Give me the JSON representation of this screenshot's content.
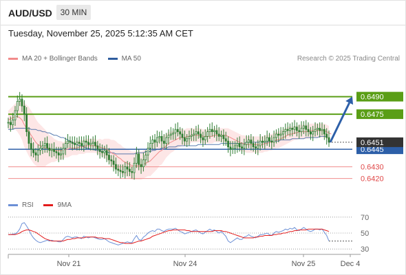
{
  "header": {
    "symbol": "AUD/USD",
    "timeframe": "30 MIN"
  },
  "datetime": "Tuesday, November 25, 2025 5:12:35 AM CET",
  "legend": {
    "ma20_label": "MA 20 + Bollinger Bands",
    "ma50_label": "MA 50"
  },
  "credit": "Research © 2025 Trading Central",
  "colors": {
    "ma20": "#f28b8b",
    "ma50": "#2f5d9e",
    "bollinger_fill": "#fde3e3",
    "resistance": "#5a9e16",
    "support_blue": "#2d5fa8",
    "support_red": "#f08c8c",
    "candle": "#2e7d32",
    "rsi": "#6b8fd6",
    "rsi_ma": "#e31b1b",
    "price_tag": "#333333"
  },
  "chart_data": [
    {
      "type": "candlestick",
      "title": "AUD/USD 30 MIN",
      "x_ticks": [
        "Nov 21",
        "Nov 24",
        "Nov 25",
        "Dec 4"
      ],
      "ylim": [
        0.6408,
        0.6508
      ],
      "last_price": "0.6451",
      "levels": [
        {
          "value": "0.6490",
          "kind": "resistance"
        },
        {
          "value": "0.6475",
          "kind": "resistance"
        },
        {
          "value": "0.6445",
          "kind": "support_blue"
        },
        {
          "value": "0.6430",
          "kind": "support_red"
        },
        {
          "value": "0.6420",
          "kind": "support_red"
        }
      ],
      "close": [
        0.6468,
        0.6466,
        0.647,
        0.6478,
        0.6486,
        0.6488,
        0.6482,
        0.6475,
        0.646,
        0.645,
        0.6445,
        0.6442,
        0.644,
        0.6444,
        0.6446,
        0.6448,
        0.645,
        0.6446,
        0.6444,
        0.6445,
        0.6443,
        0.6442,
        0.644,
        0.6441,
        0.6446,
        0.645,
        0.6452,
        0.6451,
        0.645,
        0.6449,
        0.6451,
        0.645,
        0.6448,
        0.6452,
        0.6451,
        0.6449,
        0.645,
        0.6451,
        0.6448,
        0.6445,
        0.6443,
        0.6442,
        0.6444,
        0.644,
        0.6436,
        0.6435,
        0.6432,
        0.6428,
        0.6427,
        0.6426,
        0.6425,
        0.643,
        0.6428,
        0.6426,
        0.6425,
        0.6433,
        0.6441,
        0.6432,
        0.643,
        0.6436,
        0.644,
        0.6446,
        0.645,
        0.6453,
        0.6451,
        0.6455,
        0.6456,
        0.6452,
        0.645,
        0.6455,
        0.6457,
        0.6458,
        0.6459,
        0.6462,
        0.646,
        0.6458,
        0.6455,
        0.6452,
        0.6454,
        0.6456,
        0.6457,
        0.6458,
        0.646,
        0.6458,
        0.6455,
        0.6453,
        0.6456,
        0.646,
        0.6462,
        0.646,
        0.6461,
        0.6458,
        0.6456,
        0.6457,
        0.6454,
        0.6452,
        0.6447,
        0.6445,
        0.6446,
        0.6448,
        0.645,
        0.6447,
        0.6446,
        0.6449,
        0.6451,
        0.6453,
        0.645,
        0.6447,
        0.6446,
        0.6448,
        0.6452,
        0.6451,
        0.6452,
        0.6455,
        0.6452,
        0.6451,
        0.6455,
        0.6458,
        0.6457,
        0.6458,
        0.646,
        0.6462,
        0.6461,
        0.6463,
        0.6462,
        0.6464,
        0.6461,
        0.646,
        0.6463,
        0.6465,
        0.6462,
        0.646,
        0.6458,
        0.646,
        0.6462,
        0.6463,
        0.6461,
        0.6462,
        0.6458,
        0.6455,
        0.6451
      ],
      "ma20": [
        0.647,
        0.6471,
        0.6472,
        0.6473,
        0.6473,
        0.6472,
        0.647,
        0.6466,
        0.6463,
        0.646,
        0.6457,
        0.6454,
        0.6451,
        0.6449,
        0.6448,
        0.6447,
        0.6446,
        0.6446,
        0.6445,
        0.6445,
        0.6444,
        0.6444,
        0.6444,
        0.6444,
        0.6444,
        0.6445,
        0.6445,
        0.6446,
        0.6446,
        0.6446,
        0.6446,
        0.6447,
        0.6447,
        0.6447,
        0.6448,
        0.6448,
        0.6448,
        0.6448,
        0.6448,
        0.6447,
        0.6447,
        0.6446,
        0.6446,
        0.6445,
        0.6444,
        0.6442,
        0.6441,
        0.644,
        0.6438,
        0.6437,
        0.6435,
        0.6434,
        0.6433,
        0.6432,
        0.6431,
        0.6431,
        0.6431,
        0.6431,
        0.6431,
        0.6432,
        0.6433,
        0.6434,
        0.6435,
        0.6437,
        0.6439,
        0.6441,
        0.6443,
        0.6444,
        0.6446,
        0.6448,
        0.645,
        0.6451,
        0.6452,
        0.6453,
        0.6454,
        0.6455,
        0.6455,
        0.6455,
        0.6456,
        0.6456,
        0.6457,
        0.6457,
        0.6457,
        0.6457,
        0.6457,
        0.6456,
        0.6456,
        0.6456,
        0.6456,
        0.6456,
        0.6457,
        0.6457,
        0.6457,
        0.6457,
        0.6457,
        0.6457,
        0.6456,
        0.6455,
        0.6454,
        0.6453,
        0.6452,
        0.6451,
        0.645,
        0.645,
        0.6449,
        0.6449,
        0.6449,
        0.6449,
        0.6449,
        0.6449,
        0.6449,
        0.6449,
        0.645,
        0.645,
        0.6451,
        0.6451,
        0.6452,
        0.6453,
        0.6453,
        0.6454,
        0.6455,
        0.6456,
        0.6457,
        0.6458,
        0.6458,
        0.6459,
        0.6459,
        0.646,
        0.646,
        0.646,
        0.646,
        0.646,
        0.6461,
        0.6461,
        0.6461,
        0.6461,
        0.6461,
        0.6461,
        0.6461,
        0.646,
        0.6459,
        0.6458
      ],
      "bb_width": [
        0.0008,
        0.0009,
        0.001,
        0.0011,
        0.0013,
        0.0015,
        0.0017,
        0.0019,
        0.002,
        0.0021,
        0.0021,
        0.0021,
        0.002,
        0.0019,
        0.0018,
        0.0017,
        0.0016,
        0.0014,
        0.0012,
        0.0011,
        0.001,
        0.0009,
        0.0008,
        0.0008,
        0.0007,
        0.0007,
        0.0007,
        0.0007,
        0.0006,
        0.0006,
        0.0006,
        0.0006,
        0.0006,
        0.0006,
        0.0006,
        0.0006,
        0.0006,
        0.0006,
        0.0006,
        0.0006,
        0.0007,
        0.0007,
        0.0008,
        0.0009,
        0.001,
        0.0011,
        0.0012,
        0.0012,
        0.0012,
        0.0012,
        0.0012,
        0.0012,
        0.0012,
        0.0012,
        0.0012,
        0.0012,
        0.0012,
        0.0012,
        0.0012,
        0.0012,
        0.0012,
        0.0012,
        0.0013,
        0.0013,
        0.0013,
        0.0013,
        0.0012,
        0.0012,
        0.0011,
        0.001,
        0.001,
        0.0009,
        0.0009,
        0.0008,
        0.0008,
        0.0008,
        0.0007,
        0.0007,
        0.0007,
        0.0007,
        0.0006,
        0.0006,
        0.0006,
        0.0006,
        0.0006,
        0.0006,
        0.0006,
        0.0006,
        0.0006,
        0.0006,
        0.0006,
        0.0006,
        0.0006,
        0.0006,
        0.0006,
        0.0006,
        0.0007,
        0.0007,
        0.0007,
        0.0007,
        0.0007,
        0.0007,
        0.0007,
        0.0007,
        0.0007,
        0.0007,
        0.0007,
        0.0007,
        0.0007,
        0.0007,
        0.0007,
        0.0007,
        0.0007,
        0.0007,
        0.0007,
        0.0007,
        0.0007,
        0.0007,
        0.0007,
        0.0007,
        0.0007,
        0.0007,
        0.0007,
        0.0007,
        0.0006,
        0.0006,
        0.0006,
        0.0006,
        0.0006,
        0.0006,
        0.0006,
        0.0006,
        0.0006,
        0.0006,
        0.0006,
        0.0006,
        0.0006,
        0.0006,
        0.0006,
        0.0006,
        0.0006,
        0.0006
      ],
      "ma50": [
        0.6462,
        0.6462,
        0.6462,
        0.6463,
        0.6463,
        0.6463,
        0.6463,
        0.6463,
        0.6463,
        0.6463,
        0.6462,
        0.6462,
        0.6462,
        0.6461,
        0.6461,
        0.646,
        0.646,
        0.6459,
        0.6459,
        0.6458,
        0.6457,
        0.6457,
        0.6456,
        0.6455,
        0.6455,
        0.6454,
        0.6453,
        0.6452,
        0.6451,
        0.645,
        0.6449,
        0.6448,
        0.6448,
        0.6447,
        0.6446,
        0.6446,
        0.6445,
        0.6445,
        0.6444,
        0.6444,
        0.6444,
        0.6443,
        0.6443,
        0.6443,
        0.6442,
        0.6442,
        0.6442,
        0.6441,
        0.6441,
        0.6441,
        0.6441,
        0.6441,
        0.6441,
        0.6441,
        0.6441,
        0.6441,
        0.6442,
        0.6442,
        0.6442,
        0.6442,
        0.6443,
        0.6443,
        0.6443,
        0.6444,
        0.6444,
        0.6445,
        0.6445,
        0.6446,
        0.6446,
        0.6446,
        0.6447,
        0.6447,
        0.6447,
        0.6447,
        0.6448,
        0.6448,
        0.6448,
        0.6448,
        0.6448,
        0.6448,
        0.6448,
        0.6448,
        0.6448,
        0.6449,
        0.6449,
        0.6449,
        0.6449,
        0.6449,
        0.6449,
        0.6449,
        0.6449,
        0.6449,
        0.6449,
        0.645,
        0.645,
        0.645,
        0.645,
        0.645,
        0.645,
        0.645,
        0.645,
        0.645,
        0.645,
        0.645,
        0.6451,
        0.6451,
        0.6451,
        0.6451,
        0.6451,
        0.6451,
        0.6451,
        0.6451,
        0.6451,
        0.6451,
        0.6452,
        0.6452,
        0.6452,
        0.6452,
        0.6452,
        0.6453,
        0.6453,
        0.6453,
        0.6453,
        0.6453,
        0.6454,
        0.6454,
        0.6454,
        0.6454,
        0.6454,
        0.6454,
        0.6455,
        0.6455,
        0.6455,
        0.6455,
        0.6455,
        0.6455,
        0.6456,
        0.6456,
        0.6456,
        0.6456
      ],
      "forecast": [
        {
          "from": "0.6451",
          "to": "0.6490"
        }
      ]
    },
    {
      "type": "line",
      "title": "RSI",
      "x_ticks": [
        "Nov 21",
        "Nov 24",
        "Nov 25",
        "Dec 4"
      ],
      "ylim": [
        25,
        75
      ],
      "y_ticks": [
        "70",
        "50",
        "30"
      ],
      "series": [
        {
          "name": "RSI",
          "values": [
            48,
            48,
            49,
            49,
            51,
            55,
            62,
            63,
            59,
            54,
            48,
            44,
            41,
            39,
            38,
            39,
            40,
            41,
            40,
            41,
            40,
            40,
            39,
            39,
            42,
            45,
            46,
            45,
            44,
            45,
            45,
            44,
            43,
            46,
            45,
            44,
            45,
            45,
            44,
            43,
            42,
            42,
            43,
            41,
            39,
            38,
            37,
            36,
            35,
            36,
            37,
            38,
            39,
            38,
            38,
            43,
            47,
            42,
            41,
            45,
            47,
            50,
            52,
            53,
            52,
            55,
            55,
            53,
            52,
            54,
            55,
            55,
            55,
            56,
            54,
            52,
            51,
            49,
            50,
            51,
            52,
            53,
            54,
            52,
            50,
            49,
            51,
            53,
            55,
            53,
            54,
            52,
            50,
            52,
            49,
            46,
            40,
            38,
            40,
            42,
            44,
            42,
            42,
            45,
            46,
            48,
            46,
            45,
            44,
            46,
            48,
            48,
            49,
            50,
            48,
            47,
            50,
            52,
            51,
            52,
            53,
            55,
            54,
            56,
            55,
            57,
            54,
            53,
            55,
            57,
            55,
            53,
            52,
            53,
            55,
            55,
            54,
            55,
            51,
            47,
            40
          ]
        },
        {
          "name": "9MA",
          "values": [
            48,
            48,
            48,
            48,
            49,
            50,
            52,
            53,
            54,
            54,
            53,
            52,
            51,
            49,
            47,
            45,
            43,
            42,
            41,
            40,
            40,
            40,
            40,
            40,
            40,
            41,
            42,
            42,
            43,
            43,
            44,
            44,
            44,
            44,
            45,
            45,
            45,
            45,
            45,
            44,
            44,
            44,
            43,
            43,
            43,
            42,
            41,
            40,
            39,
            38,
            38,
            37,
            37,
            37,
            37,
            38,
            39,
            40,
            40,
            41,
            42,
            43,
            44,
            46,
            47,
            48,
            49,
            50,
            51,
            52,
            53,
            53,
            54,
            54,
            54,
            54,
            54,
            54,
            53,
            53,
            52,
            52,
            52,
            52,
            52,
            52,
            52,
            52,
            52,
            52,
            53,
            53,
            53,
            53,
            52,
            52,
            51,
            50,
            49,
            48,
            47,
            46,
            45,
            44,
            44,
            44,
            44,
            44,
            45,
            45,
            46,
            46,
            47,
            47,
            47,
            47,
            48,
            48,
            49,
            49,
            50,
            50,
            51,
            52,
            52,
            53,
            53,
            54,
            54,
            54,
            54,
            55,
            55,
            55,
            55,
            55,
            55,
            55,
            54,
            53,
            52
          ]
        }
      ]
    }
  ]
}
